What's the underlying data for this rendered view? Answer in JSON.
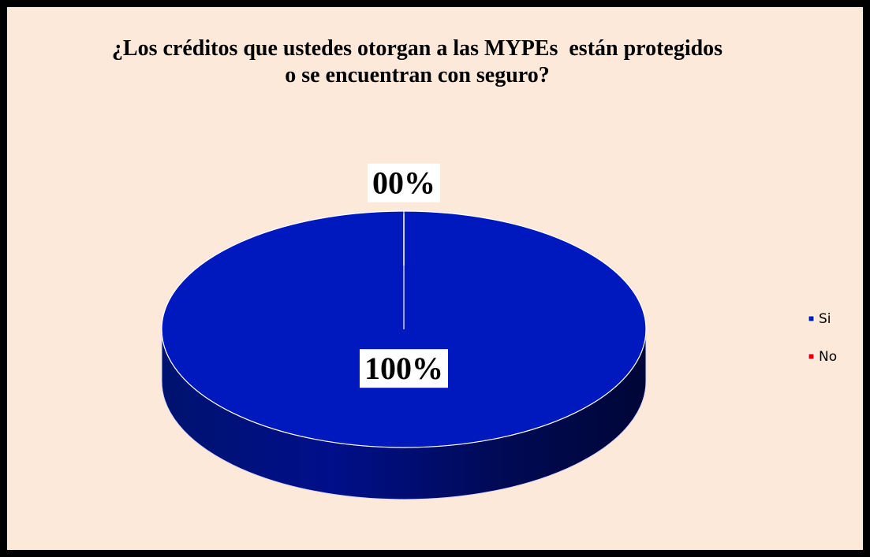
{
  "chart_data": {
    "type": "pie",
    "title": "¿Los créditos que ustedes otorgan a las MYPEs  están protegidos o se encuentran con seguro?",
    "categories": [
      "Si",
      "No"
    ],
    "values": [
      100,
      0
    ],
    "value_labels": [
      "100%",
      "00%"
    ],
    "colors": [
      "#0019bf",
      "#e00000"
    ],
    "legend": "right"
  }
}
